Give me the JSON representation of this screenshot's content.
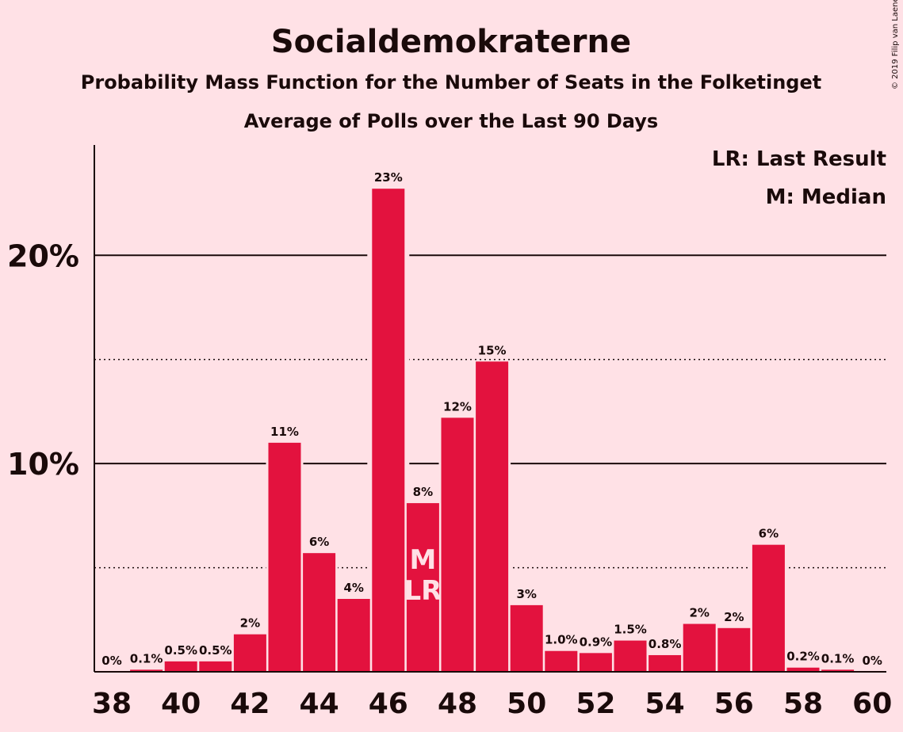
{
  "chart_data": {
    "type": "bar",
    "title": "Socialdemokraterne",
    "subtitle": "Probability Mass Function for the Number of Seats in the Folketinget",
    "subtitle2": "Average of Polls over the Last 90 Days",
    "copyright": "© 2019 Filip van Laenen",
    "legend": [
      "LR: Last Result",
      "M: Median"
    ],
    "legend_position": "top-right",
    "bar_color": "#E3123E",
    "x": [
      38,
      39,
      40,
      41,
      42,
      43,
      44,
      45,
      46,
      47,
      48,
      49,
      50,
      51,
      52,
      53,
      54,
      55,
      56,
      57,
      58,
      59,
      60
    ],
    "values": [
      0,
      0.1,
      0.5,
      0.5,
      1.8,
      11.0,
      5.7,
      3.5,
      23.2,
      8.1,
      12.2,
      14.9,
      3.2,
      1.0,
      0.9,
      1.5,
      0.8,
      2.3,
      2.1,
      6.1,
      0.2,
      0.1,
      0
    ],
    "data_labels": [
      "0%",
      "0.1%",
      "0.5%",
      "0.5%",
      "2%",
      "11%",
      "6%",
      "4%",
      "23%",
      "8%",
      "12%",
      "15%",
      "3%",
      "1.0%",
      "0.9%",
      "1.5%",
      "0.8%",
      "2%",
      "2%",
      "6%",
      "0.2%",
      "0.1%",
      "0%"
    ],
    "x_ticks": [
      38,
      40,
      42,
      44,
      46,
      48,
      50,
      52,
      54,
      56,
      58,
      60
    ],
    "y_ticks": [
      {
        "value": 10,
        "label": "10%"
      },
      {
        "value": 20,
        "label": "20%"
      }
    ],
    "y_minor_gridlines": [
      5,
      15
    ],
    "ylim": [
      0,
      25.3
    ],
    "median_seat": 47,
    "last_result_seat": 47,
    "median_marker": "M",
    "last_result_marker": "LR"
  }
}
